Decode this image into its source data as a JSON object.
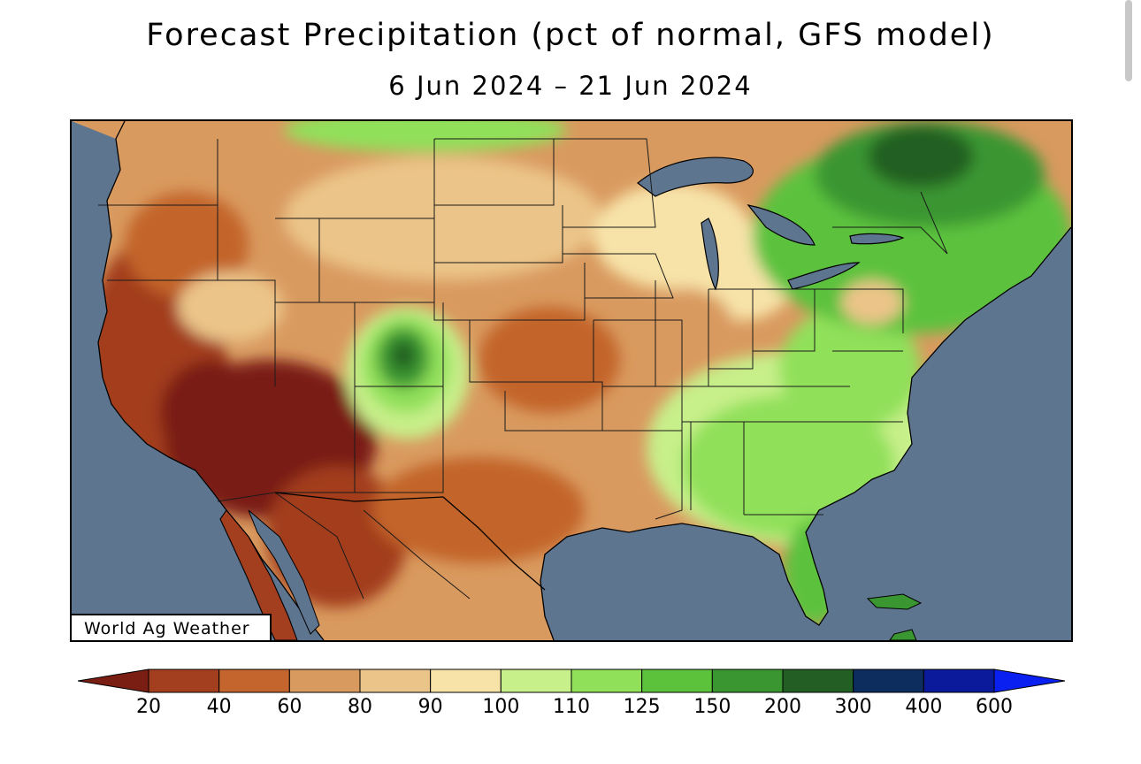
{
  "title": "Forecast Precipitation (pct of normal, GFS model)",
  "date_range": "6 Jun 2024 – 21 Jun 2024",
  "watermark": "World Ag Weather",
  "map": {
    "ocean_color": "#5e7590",
    "regions": [
      {
        "name": "southwest-desert",
        "category": "20",
        "color": "#7a1e14"
      },
      {
        "name": "great-basin-plains",
        "category": "40-60",
        "color": "#b9602a"
      },
      {
        "name": "northern-plains",
        "category": "60-80",
        "color": "#d9a26a"
      },
      {
        "name": "colorado-wet-spot",
        "category": "150-200",
        "color": "#2e7d32"
      },
      {
        "name": "southeast",
        "category": "110-125",
        "color": "#8ed14f"
      },
      {
        "name": "northeast-canada",
        "category": "200-300",
        "color": "#1f5a25"
      }
    ]
  },
  "legend": {
    "bins": [
      {
        "color": "#7a1e14"
      },
      {
        "color": "#a33e1f"
      },
      {
        "color": "#c3652c"
      },
      {
        "color": "#d99a5f"
      },
      {
        "color": "#ebc489"
      },
      {
        "color": "#f7e3a8"
      },
      {
        "color": "#c7ef8a"
      },
      {
        "color": "#91e05a"
      },
      {
        "color": "#5cc23c"
      },
      {
        "color": "#3a9630"
      },
      {
        "color": "#235f24"
      },
      {
        "color": "#0c2d5e"
      },
      {
        "color": "#0b1a9a"
      },
      {
        "color": "#0a20f0"
      }
    ],
    "labels": [
      "20",
      "40",
      "60",
      "80",
      "90",
      "100",
      "110",
      "125",
      "150",
      "200",
      "300",
      "400",
      "600"
    ]
  }
}
